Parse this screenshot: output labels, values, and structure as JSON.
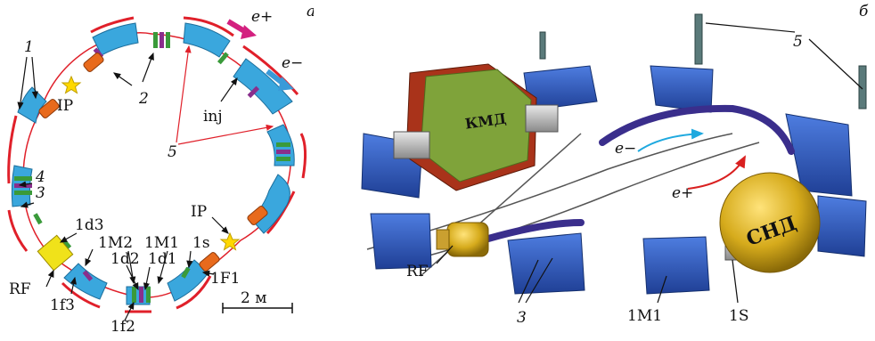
{
  "panel_a": {
    "letter": "a",
    "labels": {
      "n1": "1",
      "n2": "2",
      "n3": "3",
      "n4": "4",
      "n5": "5",
      "ip_top": "IP",
      "ip_bottom": "IP",
      "inj": "inj",
      "e_plus": "e+",
      "e_minus": "e−",
      "d3": "1d3",
      "m2": "1M2",
      "m1": "1M1",
      "s1": "1s",
      "d2": "1d2",
      "d1": "1d1",
      "f1": "1F1",
      "rf": "RF",
      "f3": "1f3",
      "f2": "1f2",
      "scale": "2 м"
    },
    "colors": {
      "dipole": "#3aa7dd",
      "ring": "#e0202a",
      "quad_green": "#3a9a3a",
      "quad_purple": "#8a2e8c",
      "rf": "#f0e21a",
      "ip": "#ffd800",
      "e_plus_arrow": "#d3207f",
      "e_minus_arrow": "#3a9ad8"
    }
  },
  "panel_b": {
    "letter": "б",
    "labels": {
      "kmd": "КМД",
      "snd": "СНД",
      "n5": "5",
      "n3": "3",
      "e_minus": "e−",
      "e_plus": "e+",
      "rf": "RF",
      "m1": "1M1",
      "s1": "1S"
    },
    "colors": {
      "magnet_blue": "#2b55b8",
      "kmd_green": "#7fa33a",
      "kmd_red": "#a9331a",
      "snd_gold": "#d6ab1c",
      "beam_cyan": "#1fa9df",
      "beam_red": "#d92020"
    }
  }
}
